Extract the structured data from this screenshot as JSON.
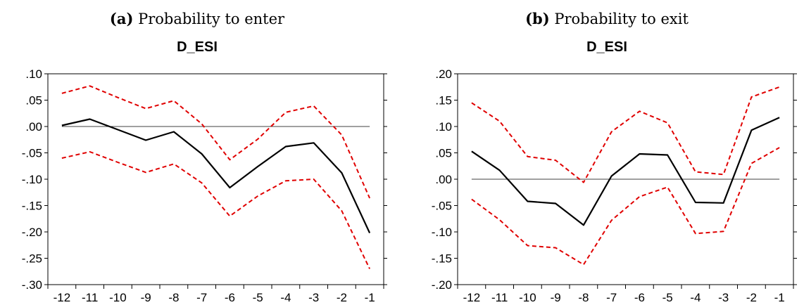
{
  "chart_data": [
    {
      "type": "line",
      "caption_prefix": "(a)",
      "caption_text": "Probability to enter",
      "title": "D_ESI",
      "x": [
        -12,
        -11,
        -10,
        -9,
        -8,
        -7,
        -6,
        -5,
        -4,
        -3,
        -2,
        -1
      ],
      "ylim": [
        -0.3,
        0.1
      ],
      "yticks": [
        0.1,
        0.05,
        0.0,
        -0.05,
        -0.1,
        -0.15,
        -0.2,
        -0.25,
        -0.3
      ],
      "ytick_labels": [
        ".10",
        ".05",
        ".00",
        "-.05",
        "-.10",
        "-.15",
        "-.20",
        "-.25",
        "-.30"
      ],
      "xtick_labels": [
        "-12",
        "-11",
        "-10",
        "-9",
        "-8",
        "-7",
        "-6",
        "-5",
        "-4",
        "-3",
        "-2",
        "-1"
      ],
      "zero_line": true,
      "series": [
        {
          "role": "estimate",
          "color": "#000000",
          "style": "solid",
          "values": [
            0.002,
            0.014,
            -0.006,
            -0.026,
            -0.01,
            -0.052,
            -0.116,
            -0.076,
            -0.038,
            -0.031,
            -0.088,
            -0.202
          ]
        },
        {
          "role": "upper",
          "color": "#e00000",
          "style": "dashed",
          "values": [
            0.063,
            0.077,
            0.055,
            0.034,
            0.049,
            0.005,
            -0.063,
            -0.024,
            0.027,
            0.039,
            -0.016,
            -0.136
          ]
        },
        {
          "role": "lower",
          "color": "#e00000",
          "style": "dashed",
          "values": [
            -0.06,
            -0.048,
            -0.068,
            -0.087,
            -0.071,
            -0.107,
            -0.17,
            -0.132,
            -0.103,
            -0.1,
            -0.16,
            -0.27
          ]
        }
      ]
    },
    {
      "type": "line",
      "caption_prefix": "(b)",
      "caption_text": "Probability to exit",
      "title": "D_ESI",
      "x": [
        -12,
        -11,
        -10,
        -9,
        -8,
        -7,
        -6,
        -5,
        -4,
        -3,
        -2,
        -1
      ],
      "ylim": [
        -0.2,
        0.2
      ],
      "yticks": [
        0.2,
        0.15,
        0.1,
        0.05,
        0.0,
        -0.05,
        -0.1,
        -0.15,
        -0.2
      ],
      "ytick_labels": [
        ".20",
        ".15",
        ".10",
        ".05",
        ".00",
        "-.05",
        "-.10",
        "-.15",
        "-.20"
      ],
      "xtick_labels": [
        "-12",
        "-11",
        "-10",
        "-9",
        "-8",
        "-7",
        "-6",
        "-5",
        "-4",
        "-3",
        "-2",
        "-1"
      ],
      "zero_line": true,
      "series": [
        {
          "role": "estimate",
          "color": "#000000",
          "style": "solid",
          "values": [
            0.053,
            0.017,
            -0.042,
            -0.046,
            -0.087,
            0.006,
            0.048,
            0.046,
            -0.044,
            -0.045,
            0.093,
            0.117
          ]
        },
        {
          "role": "upper",
          "color": "#e00000",
          "style": "dashed",
          "values": [
            0.145,
            0.11,
            0.043,
            0.036,
            -0.006,
            0.09,
            0.129,
            0.107,
            0.014,
            0.009,
            0.156,
            0.175
          ]
        },
        {
          "role": "lower",
          "color": "#e00000",
          "style": "dashed",
          "values": [
            -0.038,
            -0.077,
            -0.126,
            -0.13,
            -0.162,
            -0.078,
            -0.033,
            -0.015,
            -0.103,
            -0.099,
            0.03,
            0.06
          ]
        }
      ]
    }
  ]
}
